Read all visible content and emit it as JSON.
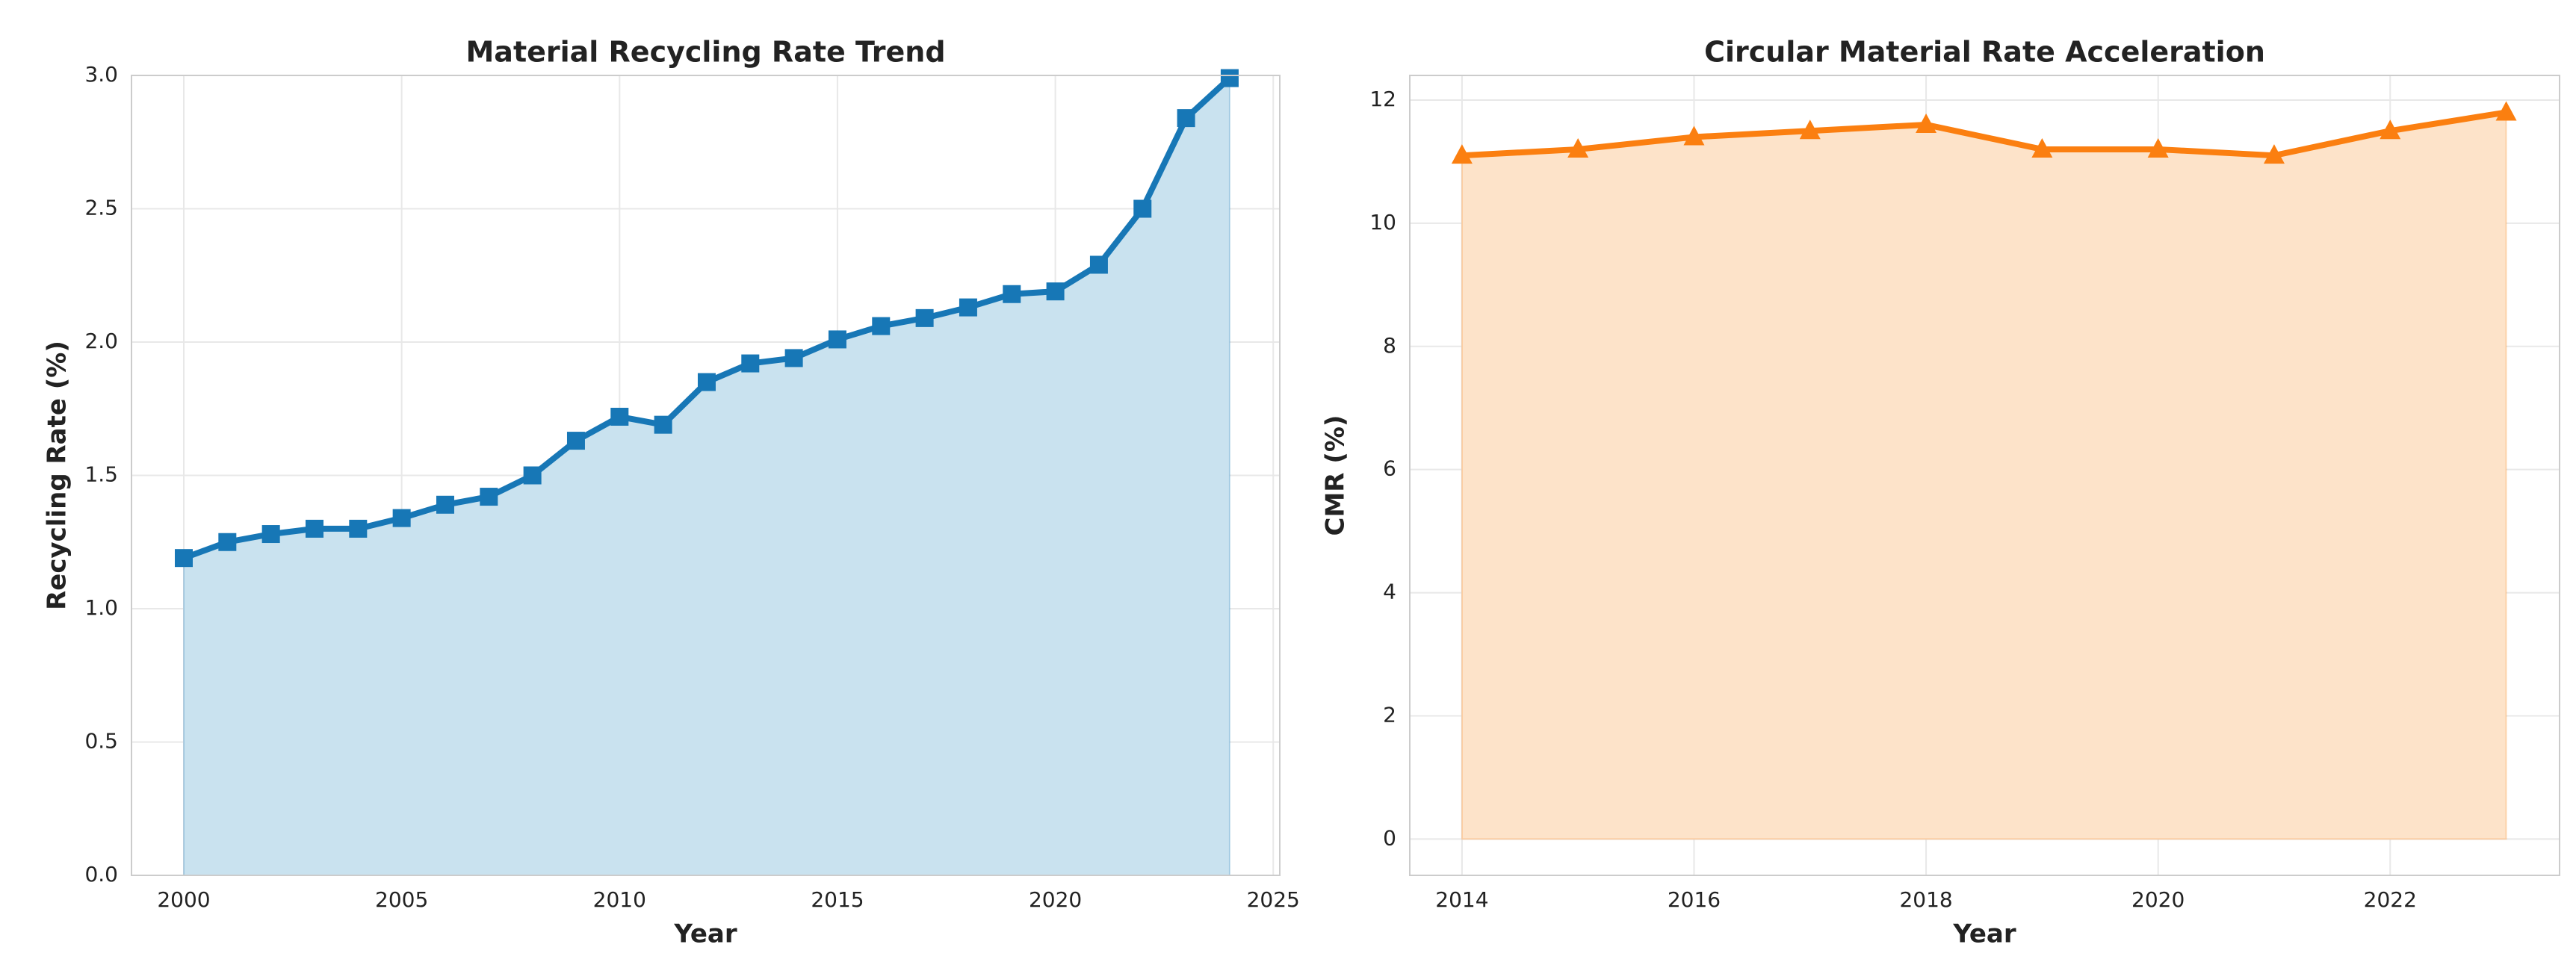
{
  "chart_data": [
    {
      "type": "area",
      "title": "Material Recycling Rate Trend",
      "x_label": "Year",
      "y_label": "Recycling Rate (%)",
      "x": [
        2000,
        2001,
        2002,
        2003,
        2004,
        2005,
        2006,
        2007,
        2008,
        2009,
        2010,
        2011,
        2012,
        2013,
        2014,
        2015,
        2016,
        2017,
        2018,
        2019,
        2020,
        2021,
        2022,
        2023,
        2024
      ],
      "series": [
        {
          "color": "#1777b6",
          "fill": "#c9e2ef",
          "marker": "square",
          "values": [
            1.19,
            1.25,
            1.28,
            1.3,
            1.3,
            1.34,
            1.39,
            1.42,
            1.5,
            1.63,
            1.72,
            1.69,
            1.85,
            1.92,
            1.94,
            2.01,
            2.06,
            2.09,
            2.13,
            2.18,
            2.19,
            2.29,
            2.5,
            2.84,
            2.99
          ]
        }
      ],
      "xlim": [
        1998.8,
        2025.15
      ],
      "xticks": [
        2000,
        2005,
        2010,
        2015,
        2020,
        2025
      ],
      "ylim": [
        0,
        3
      ],
      "yticks": [
        {
          "value": 0,
          "label": "0.0"
        },
        0.5,
        {
          "value": 1,
          "label": "1.0"
        },
        1.5,
        {
          "value": 2,
          "label": "2.0"
        },
        2.5,
        {
          "value": 3,
          "label": "3.0"
        }
      ],
      "grid": true
    },
    {
      "type": "area",
      "title": "Circular Material Rate Acceleration",
      "x_label": "Year",
      "y_label": "CMR (%)",
      "x": [
        2014,
        2015,
        2016,
        2017,
        2018,
        2019,
        2020,
        2021,
        2022,
        2023
      ],
      "series": [
        {
          "color": "#fb7f10",
          "fill": "#fde3c9",
          "marker": "triangle",
          "values": [
            11.1,
            11.2,
            11.4,
            11.5,
            11.6,
            11.2,
            11.2,
            11.1,
            11.5,
            11.8
          ]
        }
      ],
      "xlim": [
        2013.55,
        2023.46
      ],
      "xticks": [
        2014,
        2016,
        2018,
        2020,
        2022
      ],
      "ylim": [
        -0.59,
        12.4
      ],
      "yticks": [
        0,
        2,
        4,
        6,
        8,
        10,
        12
      ],
      "grid": true
    }
  ]
}
